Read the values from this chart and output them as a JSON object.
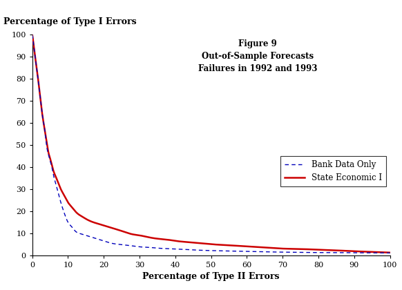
{
  "title_line1": "Figure 9",
  "title_line2": "Out-of-Sample Forecasts",
  "title_line3": "Failures in 1992 and 1993",
  "xlabel": "Percentage of Type II Errors",
  "ylabel": "Percentage of Type I Errors",
  "xlim": [
    0,
    100
  ],
  "ylim": [
    0,
    100
  ],
  "xticks": [
    0,
    10,
    20,
    30,
    40,
    50,
    60,
    70,
    80,
    90,
    100
  ],
  "yticks": [
    0,
    10,
    20,
    30,
    40,
    50,
    60,
    70,
    80,
    90,
    100
  ],
  "legend_labels": [
    "Bank Data Only",
    "State Economic I"
  ],
  "bank_color": "#0000bb",
  "state_color": "#cc0000",
  "background_color": "#ffffff",
  "x_state": [
    0,
    0.3,
    0.6,
    1.0,
    1.5,
    2.0,
    2.5,
    3.0,
    3.5,
    4.0,
    4.5,
    5.0,
    5.5,
    6.0,
    6.5,
    7.0,
    8.0,
    9.0,
    10.0,
    11.0,
    12.0,
    13.0,
    14.0,
    15.0,
    17.0,
    19.0,
    20.0,
    22.0,
    25.0,
    28.0,
    30.0,
    33.0,
    35.0,
    38.0,
    40.0,
    43.0,
    45.0,
    48.0,
    50.0,
    55.0,
    60.0,
    65.0,
    70.0,
    75.0,
    80.0,
    85.0,
    90.0,
    95.0,
    100.0
  ],
  "y_state": [
    100,
    97,
    93,
    88,
    82,
    75,
    68,
    62,
    57,
    52,
    47,
    44,
    41,
    38,
    36,
    34,
    30,
    27,
    24,
    22,
    20,
    18.5,
    17.5,
    16.5,
    15.0,
    14.0,
    13.5,
    12.5,
    11.0,
    9.5,
    9.0,
    8.0,
    7.5,
    7.0,
    6.5,
    6.0,
    5.7,
    5.3,
    5.0,
    4.5,
    4.0,
    3.5,
    3.0,
    2.8,
    2.5,
    2.2,
    1.8,
    1.5,
    1.2
  ],
  "x_bank": [
    0,
    0.3,
    0.6,
    1.0,
    1.5,
    2.0,
    2.5,
    3.0,
    3.5,
    4.0,
    4.5,
    5.0,
    5.5,
    6.0,
    6.5,
    7.0,
    8.0,
    9.0,
    10.0,
    11.0,
    12.0,
    13.0,
    14.0,
    15.0,
    17.0,
    19.0,
    20.0,
    22.0,
    25.0,
    28.0,
    30.0,
    33.0,
    35.0,
    38.0,
    40.0,
    43.0,
    45.0,
    48.0,
    50.0,
    55.0,
    60.0,
    65.0,
    70.0,
    75.0,
    80.0,
    85.0,
    90.0,
    95.0,
    100.0
  ],
  "y_bank": [
    100,
    97,
    93,
    88,
    82,
    75,
    68,
    62,
    57,
    50,
    46,
    43,
    40,
    36,
    33,
    30,
    24,
    19,
    15,
    13,
    11,
    10,
    9.5,
    9.0,
    8.0,
    7.0,
    6.5,
    5.5,
    4.8,
    4.2,
    3.8,
    3.5,
    3.2,
    3.0,
    2.8,
    2.6,
    2.4,
    2.2,
    2.1,
    1.9,
    1.7,
    1.5,
    1.4,
    1.3,
    1.2,
    1.2,
    1.1,
    1.1,
    1.0
  ]
}
